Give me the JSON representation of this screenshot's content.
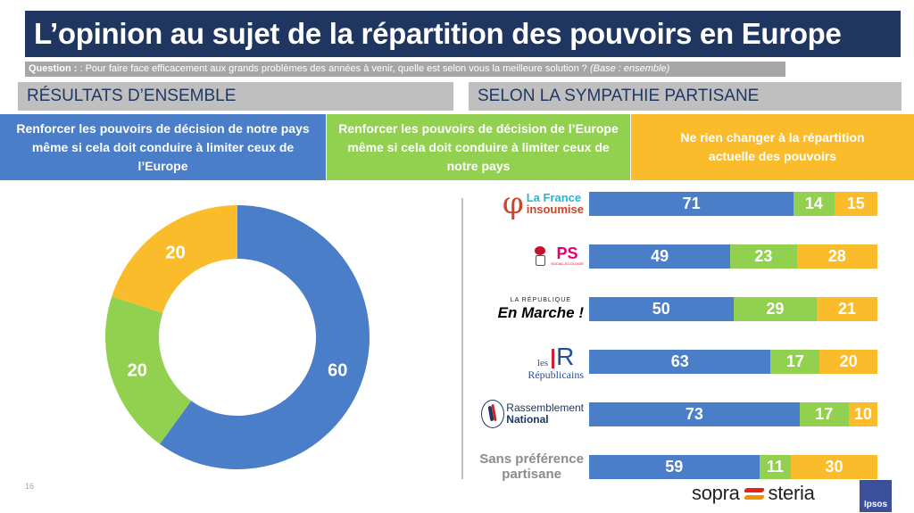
{
  "header": {
    "title": "L’opinion au sujet de la répartition des pouvoirs en Europe",
    "question_label": "Question :",
    "question_text": ": Pour faire face efficacement aux grands problèmes des années à venir, quelle est selon vous la meilleure solution ?",
    "question_base": "(Base : ensemble)"
  },
  "sections": {
    "left": "RÉSULTATS D’ENSEMBLE",
    "right": "SELON LA SYMPATHIE PARTISANE"
  },
  "legend": [
    {
      "label": "Renforcer les pouvoirs de décision de notre pays même si cela doit conduire à limiter ceux de l’Europe",
      "color": "#4a7ec8"
    },
    {
      "label": "Renforcer les pouvoirs de décision de l’Europe même si cela doit conduire à limiter ceux de notre pays",
      "color": "#92d050"
    },
    {
      "label": "Ne rien changer à la répartition actuelle des pouvoirs",
      "color": "#fbbc2c"
    }
  ],
  "parties": {
    "lfi": {
      "line1": "La France",
      "line2": "insoumise"
    },
    "ps": {
      "main": "PS",
      "sub": "SOCIAL-ÉCOLOGIE"
    },
    "lrem": {
      "line1": "LA RÉPUBLIQUE",
      "line2": "En Marche !"
    },
    "lr": {
      "line1": "les",
      "mark": "R",
      "line2": "Républicains"
    },
    "rn": {
      "line1": "Rassemblement",
      "line2": "National"
    },
    "spp": {
      "line1": "Sans préférence",
      "line2": "partisane"
    }
  },
  "footer": {
    "page_number": "16",
    "sopra_left": "sopra",
    "sopra_right": "steria",
    "ipsos": "Ipsos"
  },
  "chart_data": [
    {
      "type": "pie",
      "variant": "donut",
      "title": "RÉSULTATS D’ENSEMBLE",
      "categories": [
        "Renforcer pouvoirs de notre pays",
        "Renforcer pouvoirs de l’Europe",
        "Ne rien changer"
      ],
      "values": [
        60,
        20,
        20
      ],
      "colors": [
        "#4a7ec8",
        "#92d050",
        "#fbbc2c"
      ],
      "labels": [
        "60",
        "20",
        "20"
      ]
    },
    {
      "type": "bar",
      "orientation": "horizontal",
      "stacked": true,
      "title": "SELON LA SYMPATHIE PARTISANE",
      "categories": [
        "La France insoumise",
        "PS",
        "La République En Marche !",
        "Les Républicains",
        "Rassemblement National",
        "Sans préférence partisane"
      ],
      "series": [
        {
          "name": "Renforcer les pouvoirs de décision de notre pays",
          "color": "#4a7ec8",
          "values": [
            71,
            49,
            50,
            63,
            73,
            59
          ]
        },
        {
          "name": "Renforcer les pouvoirs de décision de l’Europe",
          "color": "#92d050",
          "values": [
            14,
            23,
            29,
            17,
            17,
            11
          ]
        },
        {
          "name": "Ne rien changer à la répartition actuelle des pouvoirs",
          "color": "#fbbc2c",
          "values": [
            15,
            28,
            21,
            20,
            10,
            30
          ]
        }
      ],
      "xlim": [
        0,
        100
      ]
    }
  ]
}
